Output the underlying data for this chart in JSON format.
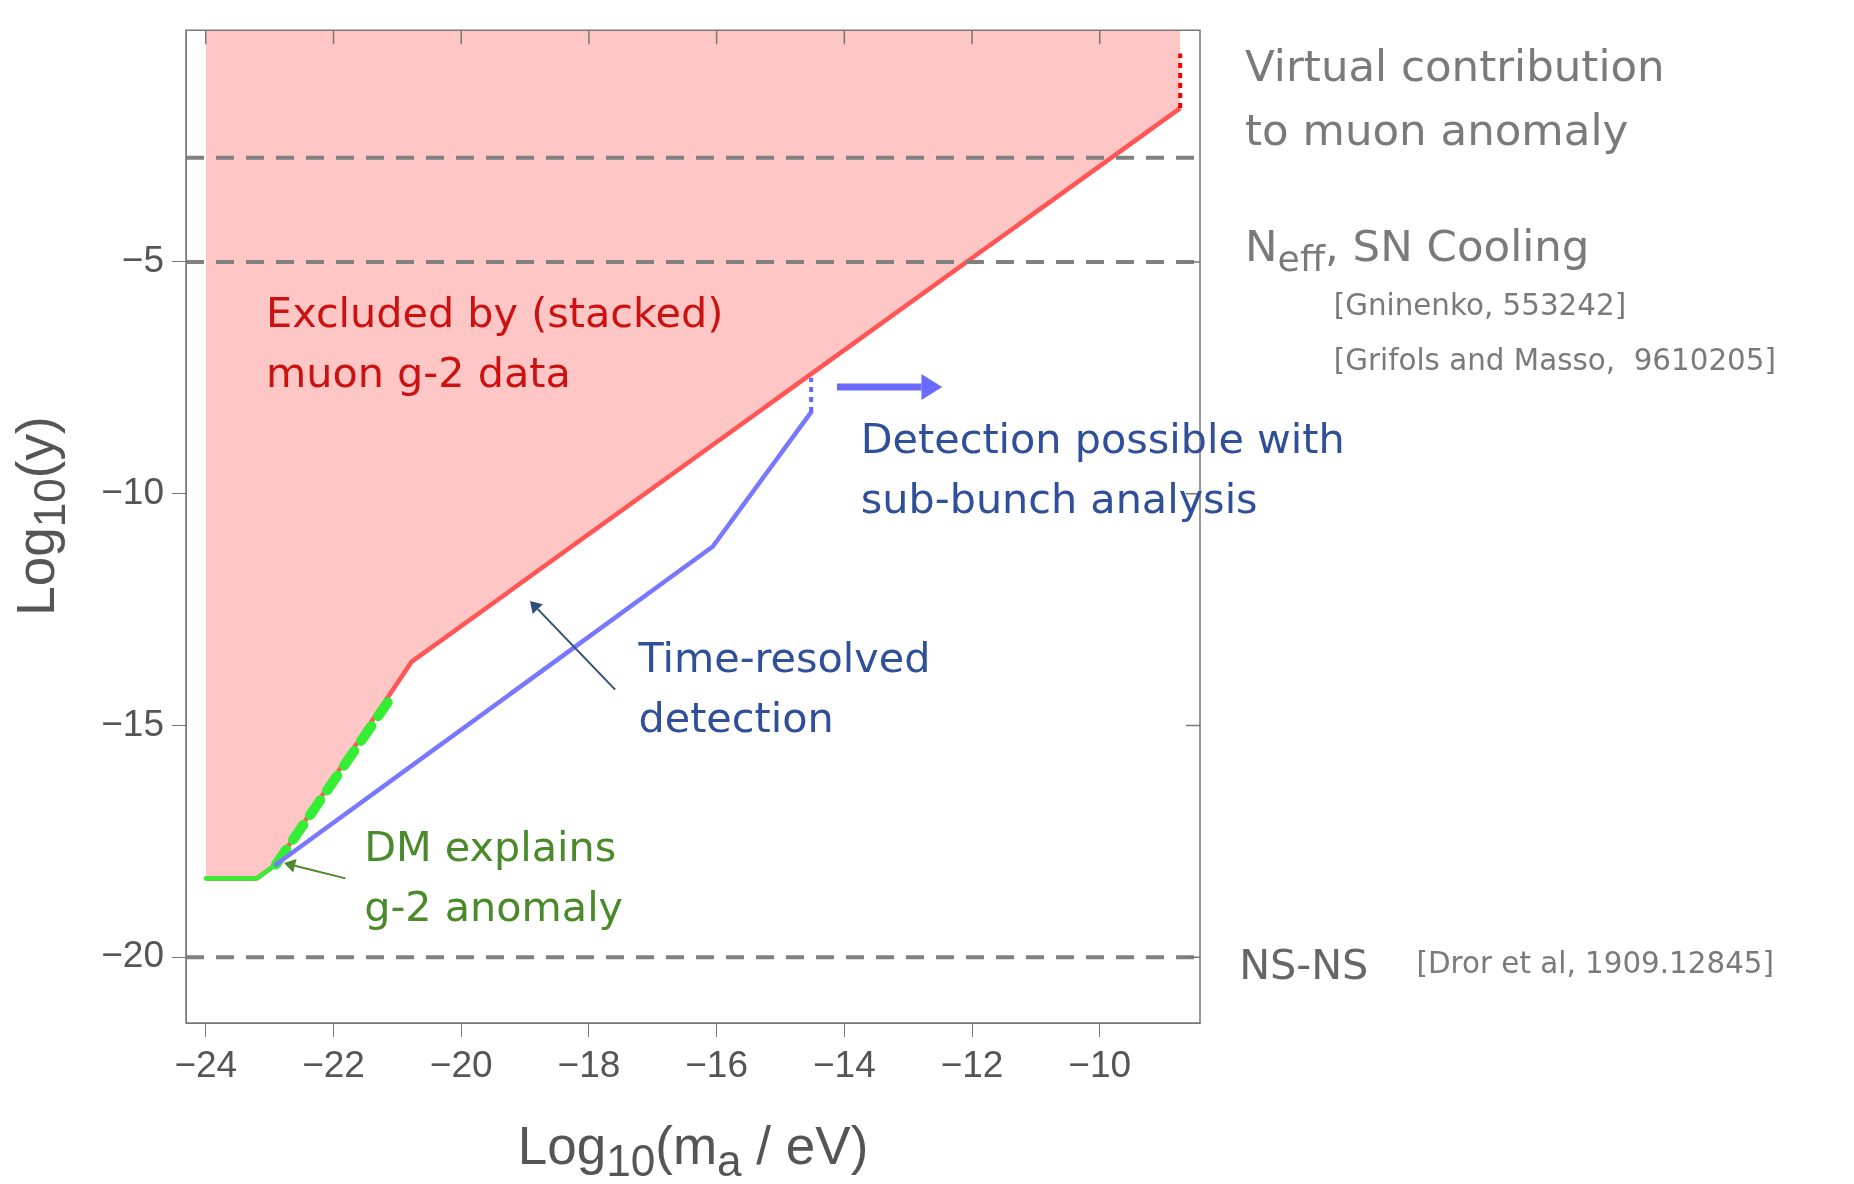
{
  "chart_data": {
    "type": "line",
    "xlabel": "Log$_{10}$(m$_{a}$ / eV)",
    "ylabel": "Log$_{10}$(y)",
    "xlim": [
      -24.31,
      -8.43
    ],
    "ylim": [
      -21.42,
      0
    ],
    "xticks": [
      -24,
      -22,
      -20,
      -18,
      -16,
      -14,
      -12,
      -10
    ],
    "yticks": [
      -5,
      -10,
      -15,
      -20
    ],
    "grid": false,
    "legend": false,
    "marker": "none",
    "series": [
      {
        "type": "area",
        "color": "#ff5555",
        "x": [
          -24,
          -23.2,
          -22.9,
          -20.78,
          -8.74
        ],
        "values": [
          -18.3,
          -18.3,
          -18.0,
          -13.63,
          -1.68
        ]
      },
      {
        "color": "#ee0000",
        "line_style": "dotted",
        "x": [
          -8.74,
          -8.74
        ],
        "values": [
          -1.68,
          -0.5
        ]
      },
      {
        "color": "#33ee33",
        "line_style": "solid",
        "x": [
          -24,
          -23.2,
          -22.9
        ],
        "values": [
          -18.3,
          -18.3,
          -18.0
        ]
      },
      {
        "color": "#33ee33",
        "line_style": "dashed",
        "x": [
          -22.9,
          -21.15
        ],
        "values": [
          -18.0,
          -14.5
        ]
      },
      {
        "color": "#7777ff",
        "line_style": "solid",
        "x": [
          -22.9,
          -16.06,
          -14.52
        ],
        "values": [
          -18.0,
          -11.14,
          -8.24
        ]
      },
      {
        "color": "#6666ff",
        "line_style": "dotted",
        "x": [
          -14.52,
          -14.52
        ],
        "values": [
          -8.24,
          -7.5
        ]
      }
    ],
    "ref_lines": [
      {
        "axis": "y",
        "value": -2.75,
        "color": "#808080",
        "line_style": "dashed"
      },
      {
        "axis": "y",
        "value": -5,
        "color": "#808080",
        "line_style": "dashed"
      },
      {
        "axis": "y",
        "value": -20,
        "color": "#808080",
        "line_style": "dashed"
      }
    ],
    "annotations": [
      "Virtual contribution\nto muon anomaly",
      "N$_{eff}$, SN Cooling",
      "[Gninenko, 553242]",
      "[Grifols and Masso,  9610205]",
      "Excluded by (stacked)\nmuon g-2 data",
      "Detection possible with\nsub-bunch analysis",
      "Time-resolved\ndetection",
      "DM explains\ng-2 anomaly",
      "NS-NS",
      "[Dror et al, 1909.12845]"
    ]
  }
}
